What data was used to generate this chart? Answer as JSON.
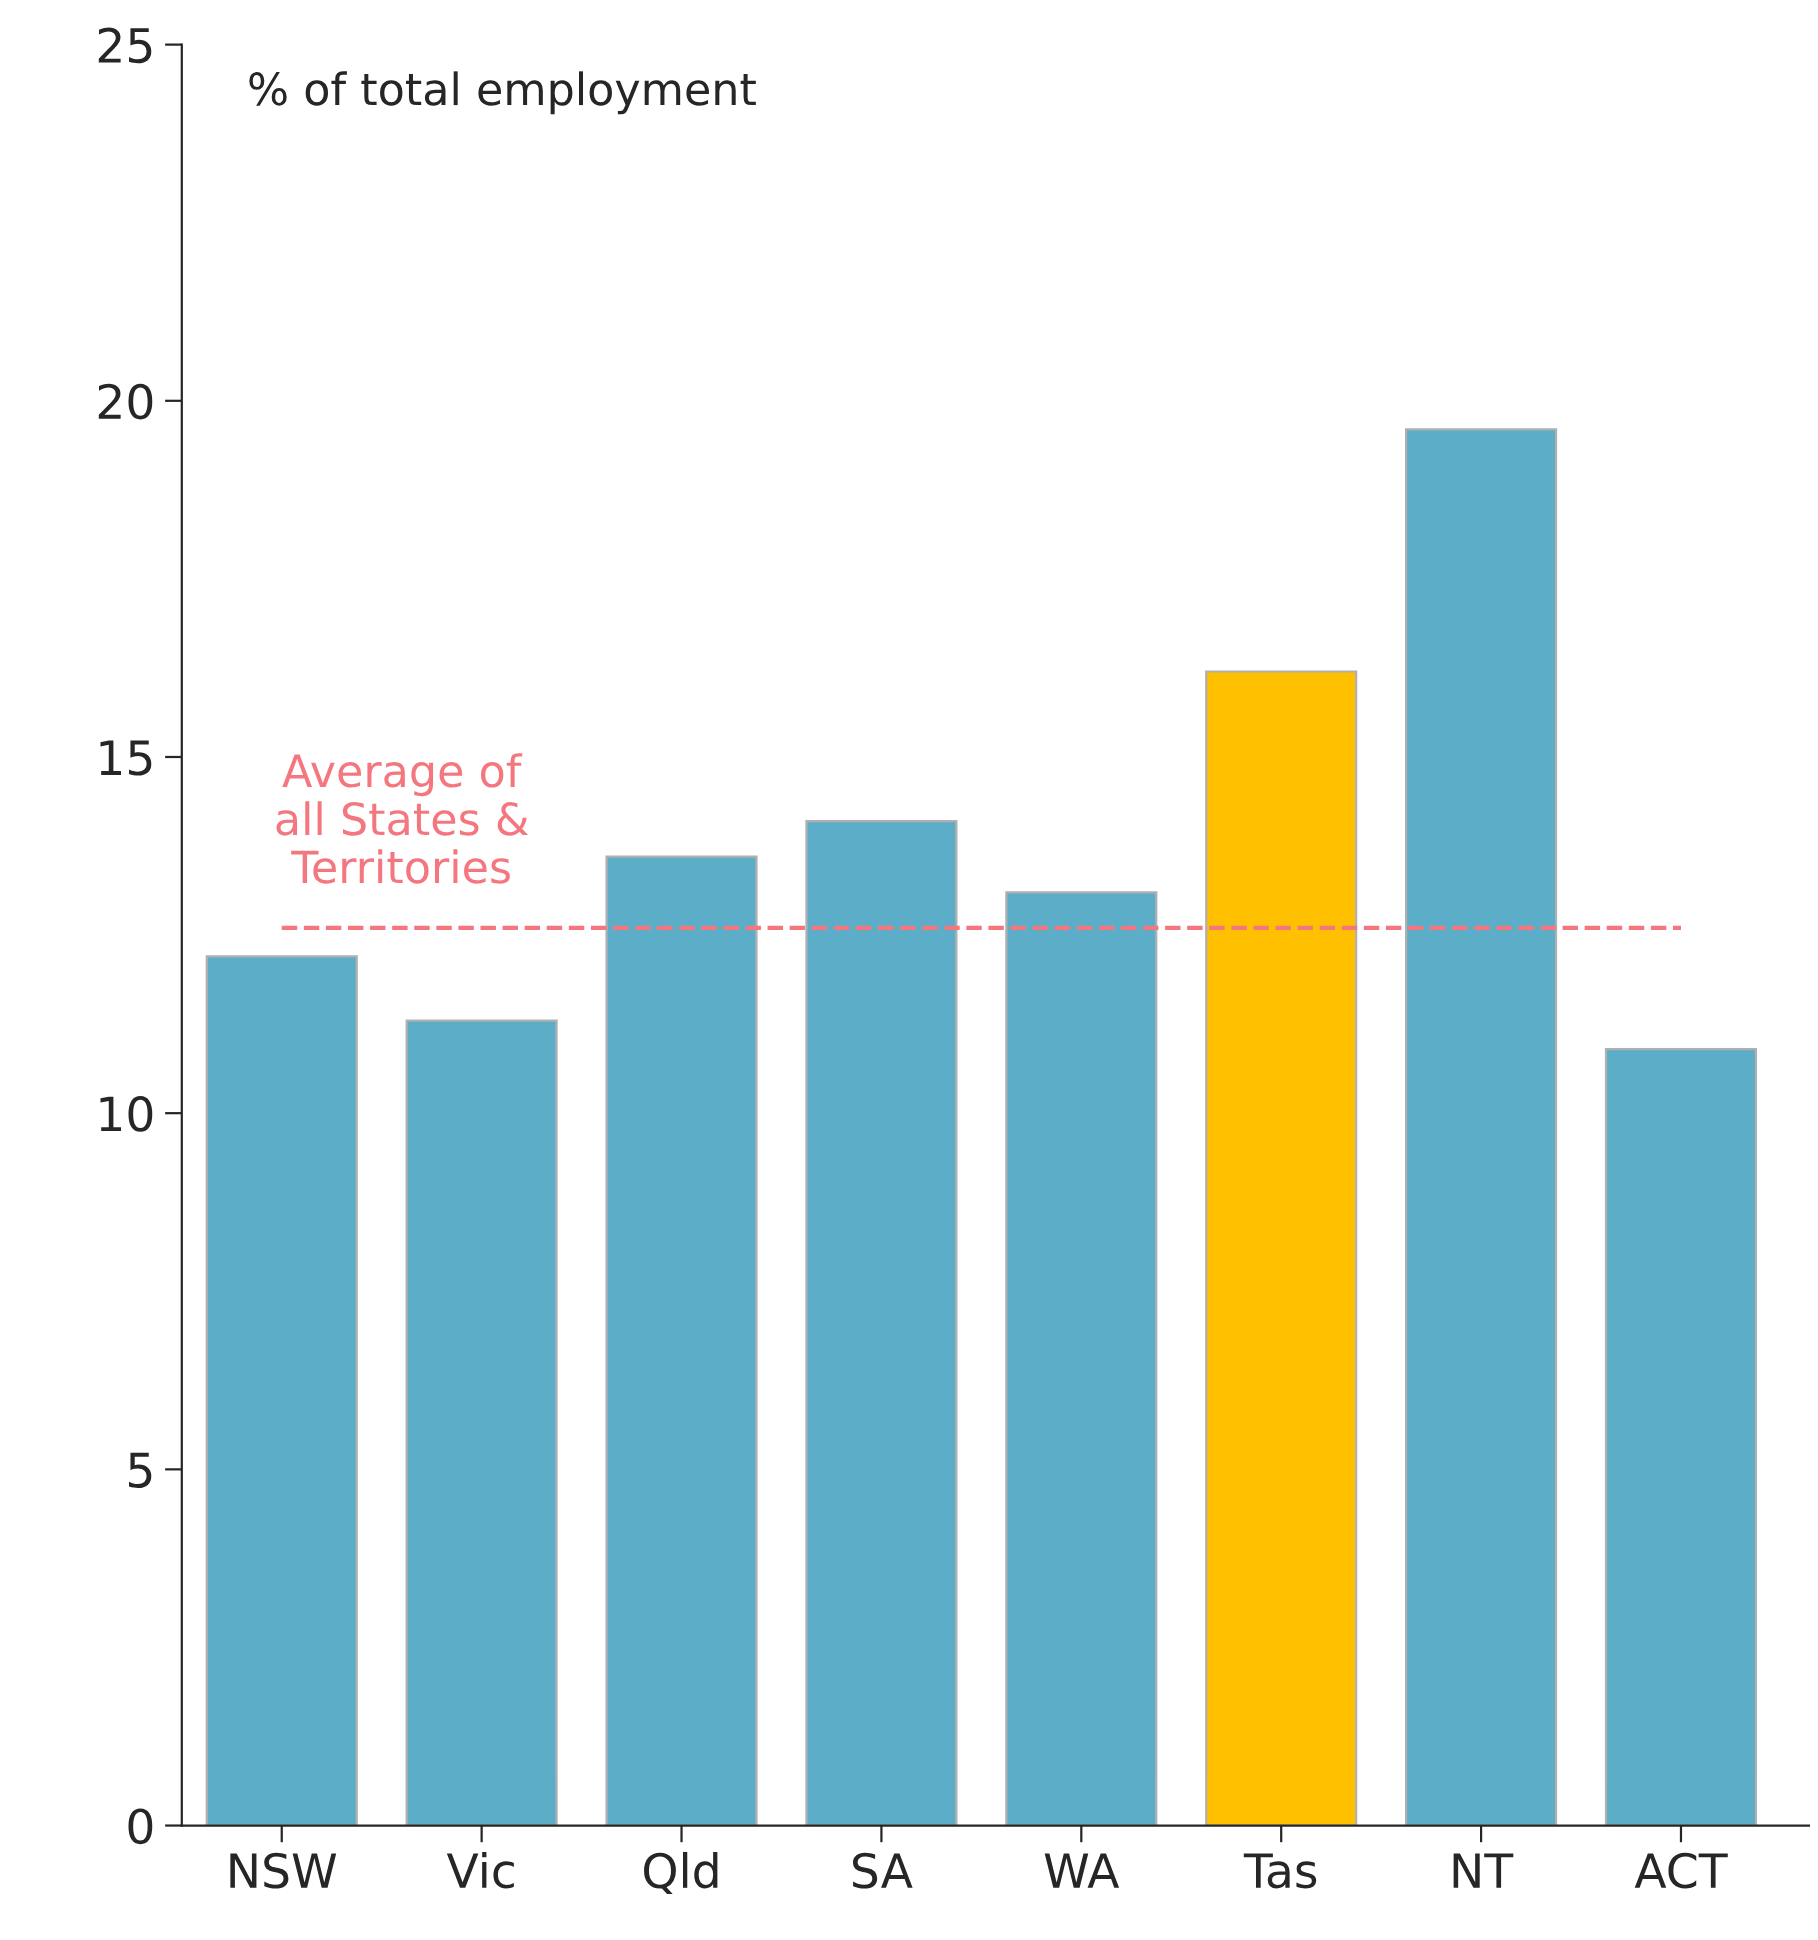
{
  "chart_data": {
    "type": "bar",
    "ylabel": "% of total employment",
    "categories": [
      "NSW",
      "Vic",
      "Qld",
      "SA",
      "WA",
      "Tas",
      "NT",
      "ACT"
    ],
    "values": [
      12.2,
      11.3,
      13.6,
      14.1,
      13.1,
      16.2,
      19.6,
      10.9
    ],
    "colors": [
      "#5badc8",
      "#5badc8",
      "#5badc8",
      "#5badc8",
      "#5badc8",
      "#ffc000",
      "#5badc8",
      "#5badc8"
    ],
    "ylim": [
      0,
      25
    ],
    "yticks": [
      0,
      5,
      10,
      15,
      20,
      25
    ],
    "grid": false,
    "legend": false,
    "ref_lines": [
      {
        "axis": "y",
        "value": 12.6,
        "label": "Average of\nall States &\nTerritories",
        "color": "#f4777f",
        "line_style": "dashed"
      }
    ]
  }
}
